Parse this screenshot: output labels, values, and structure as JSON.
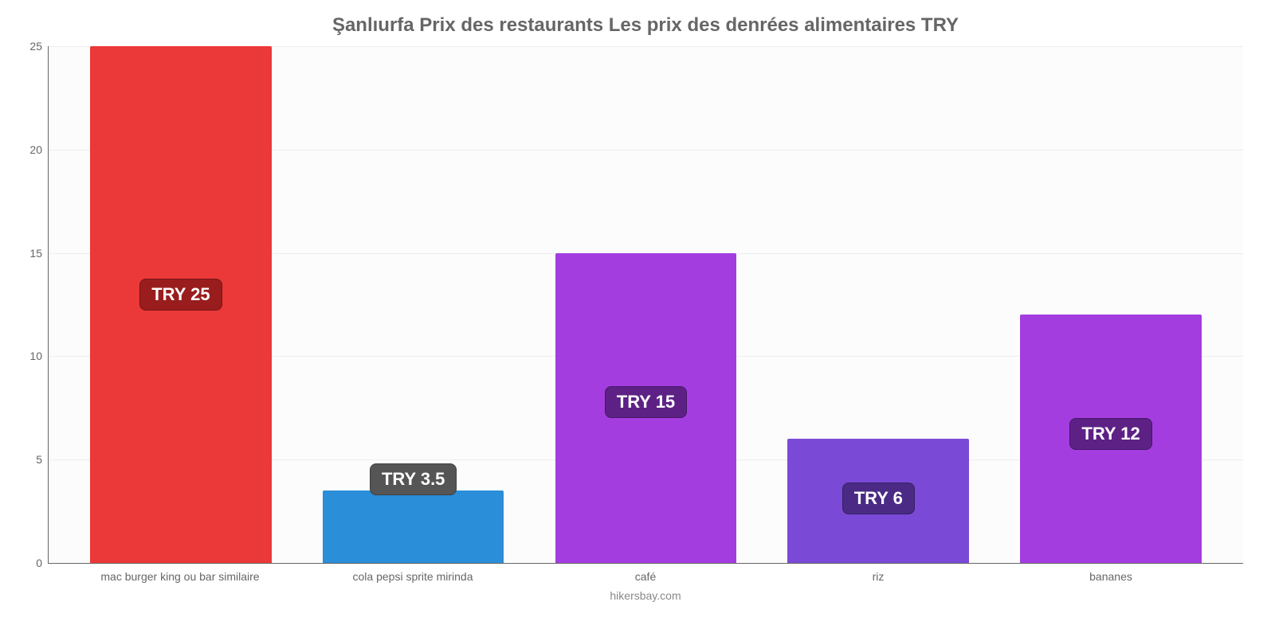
{
  "chart": {
    "type": "bar",
    "title": "Şanlıurfa Prix des restaurants Les prix des denrées alimentaires TRY",
    "title_fontsize": 24,
    "title_color": "#666666",
    "source": "hikersbay.com",
    "background_color": "#fcfcfc",
    "grid_color": "#eeeeee",
    "axis_color": "#666666",
    "label_fontsize": 14,
    "label_color": "#666666",
    "ylim": [
      0,
      25
    ],
    "ytick_step": 5,
    "yticks": [
      0,
      5,
      10,
      15,
      20,
      25
    ],
    "bar_width": 0.78,
    "value_label_fontsize": 22,
    "value_label_text_color": "#ffffff",
    "categories": [
      "mac burger king ou bar similaire",
      "cola pepsi sprite mirinda",
      "café",
      "riz",
      "bananes"
    ],
    "values": [
      25,
      3.5,
      15,
      6,
      12
    ],
    "value_labels": [
      "TRY 25",
      "TRY 3.5",
      "TRY 15",
      "TRY 6",
      "TRY 12"
    ],
    "bar_colors": [
      "#eb3838",
      "#2a8ed8",
      "#a43de0",
      "#7a4ad6",
      "#a43de0"
    ],
    "value_label_bg_colors": [
      "#9a1d1d",
      "#555555",
      "#5d2186",
      "#4a2a85",
      "#5d2186"
    ]
  }
}
